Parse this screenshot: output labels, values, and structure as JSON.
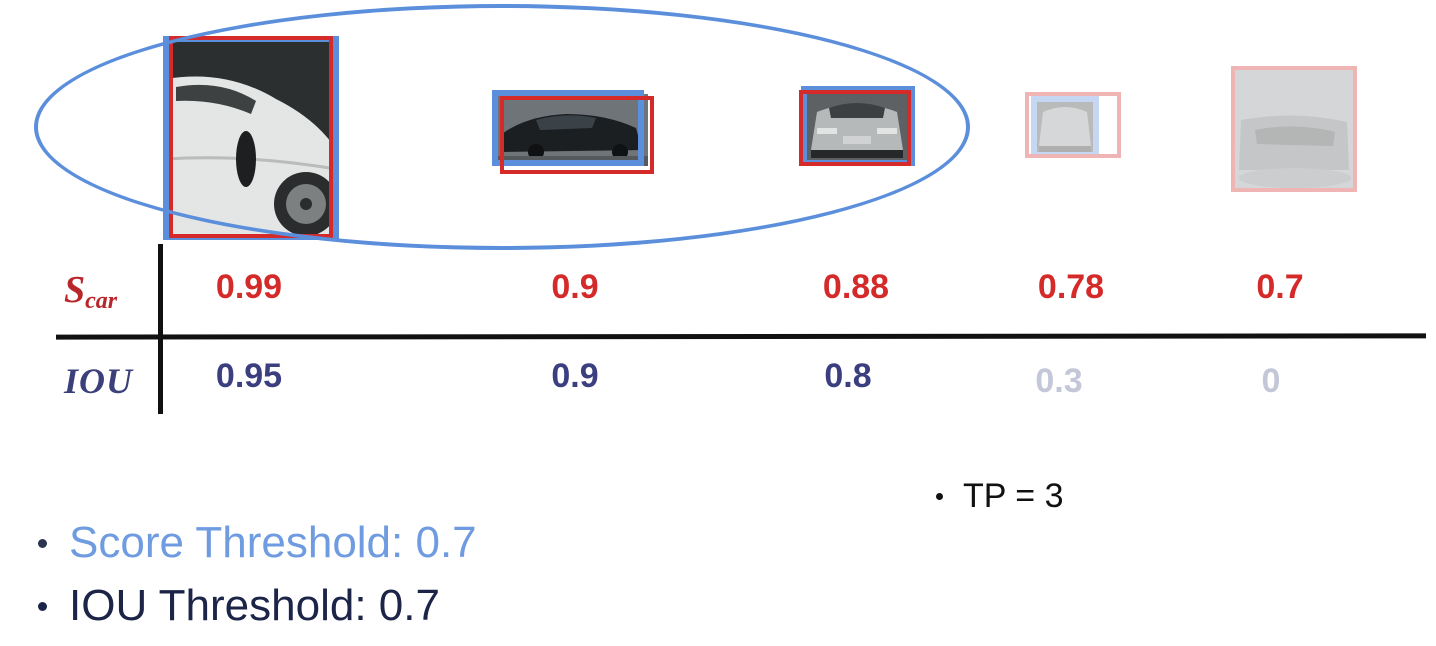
{
  "detections": [
    {
      "score": "0.99",
      "iou": "0.95",
      "faded": false
    },
    {
      "score": "0.9",
      "iou": "0.9",
      "faded": false
    },
    {
      "score": "0.88",
      "iou": "0.8",
      "faded": false
    },
    {
      "score": "0.78",
      "iou": "0.3",
      "faded": true
    },
    {
      "score": "0.7",
      "iou": "0",
      "faded": true
    }
  ],
  "table": {
    "score_label_main": "S",
    "score_label_sub": "car",
    "iou_label": "IOU"
  },
  "bullets": {
    "score_threshold": "Score Threshold: 0.7",
    "iou_threshold": "IOU Threshold: 0.7",
    "tp": "TP = 3"
  },
  "colors": {
    "ground_truth_box": "#5b8fdc",
    "prediction_box": "#d42a2a",
    "score_text": "#d42a2a",
    "iou_text": "#3b3f80"
  }
}
